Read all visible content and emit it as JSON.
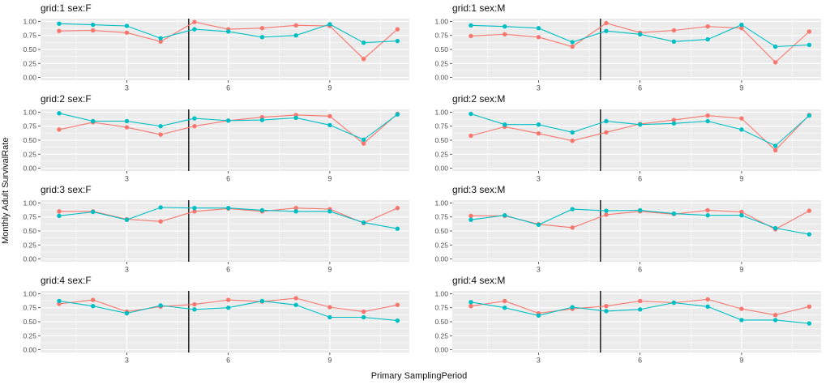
{
  "chart_data": {
    "type": "line",
    "title": "",
    "xlabel": "Primary SamplingPeriod",
    "ylabel": "Monthly Adult SurvivalRate",
    "x": [
      1,
      2,
      3,
      4,
      5,
      6,
      7,
      8,
      9,
      10,
      11
    ],
    "xlim": [
      0.45,
      11.35
    ],
    "ylim": [
      -0.05,
      1.05
    ],
    "xticks": [
      3,
      6,
      9
    ],
    "xticklabels": [
      "3",
      "6",
      "9"
    ],
    "yticks": [
      0,
      0.25,
      0.5,
      0.75,
      1.0
    ],
    "yticklabels": [
      "0.00",
      "0.25",
      "0.50",
      "0.75",
      "1.00"
    ],
    "x_minor_breaks": [
      1.5,
      4.5,
      7.5,
      10.5
    ],
    "y_minor_breaks": [
      0.125,
      0.375,
      0.625,
      0.875
    ],
    "vline_x": 4.83,
    "grid": "major-and-minor",
    "legend_position": "none",
    "panel_bg": "#EBEBEB",
    "grid_color": "#FFFFFF",
    "vline_color": "#000000",
    "tick_mark_color": "#333333",
    "tick_label_color": "#4D4D4D",
    "facet_layout": "4 rows (grid 1-4) x 2 cols (sex F, M)",
    "facets": [
      {
        "label": "grid:1 sex:F",
        "series": [
          {
            "name": "salmon",
            "color": "#F8766D",
            "values": [
              0.83,
              0.84,
              0.8,
              0.64,
              0.99,
              0.86,
              0.88,
              0.93,
              0.92,
              0.33,
              0.86
            ]
          },
          {
            "name": "teal",
            "color": "#00BFC4",
            "values": [
              0.96,
              0.94,
              0.92,
              0.7,
              0.86,
              0.82,
              0.72,
              0.75,
              0.95,
              0.62,
              0.65
            ]
          }
        ]
      },
      {
        "label": "grid:1 sex:M",
        "series": [
          {
            "name": "salmon",
            "color": "#F8766D",
            "values": [
              0.74,
              0.77,
              0.72,
              0.55,
              0.97,
              0.8,
              0.84,
              0.91,
              0.88,
              0.27,
              0.82
            ]
          },
          {
            "name": "teal",
            "color": "#00BFC4",
            "values": [
              0.93,
              0.91,
              0.88,
              0.63,
              0.83,
              0.77,
              0.64,
              0.68,
              0.94,
              0.55,
              0.58
            ]
          }
        ]
      },
      {
        "label": "grid:2 sex:F",
        "series": [
          {
            "name": "salmon",
            "color": "#F8766D",
            "values": [
              0.69,
              0.82,
              0.73,
              0.6,
              0.75,
              0.85,
              0.91,
              0.95,
              0.93,
              0.44,
              0.97
            ]
          },
          {
            "name": "teal",
            "color": "#00BFC4",
            "values": [
              0.98,
              0.84,
              0.84,
              0.75,
              0.89,
              0.85,
              0.86,
              0.9,
              0.77,
              0.51,
              0.96
            ]
          }
        ]
      },
      {
        "label": "grid:2 sex:M",
        "series": [
          {
            "name": "salmon",
            "color": "#F8766D",
            "values": [
              0.58,
              0.74,
              0.62,
              0.49,
              0.64,
              0.79,
              0.86,
              0.94,
              0.89,
              0.32,
              0.95
            ]
          },
          {
            "name": "teal",
            "color": "#00BFC4",
            "values": [
              0.97,
              0.78,
              0.78,
              0.64,
              0.84,
              0.78,
              0.8,
              0.84,
              0.69,
              0.4,
              0.94
            ]
          }
        ]
      },
      {
        "label": "grid:3 sex:F",
        "series": [
          {
            "name": "salmon",
            "color": "#F8766D",
            "values": [
              0.85,
              0.85,
              0.71,
              0.67,
              0.85,
              0.9,
              0.85,
              0.91,
              0.89,
              0.64,
              0.91
            ]
          },
          {
            "name": "teal",
            "color": "#00BFC4",
            "values": [
              0.77,
              0.84,
              0.7,
              0.92,
              0.91,
              0.91,
              0.87,
              0.85,
              0.85,
              0.65,
              0.54
            ]
          }
        ]
      },
      {
        "label": "grid:3 sex:M",
        "series": [
          {
            "name": "salmon",
            "color": "#F8766D",
            "values": [
              0.77,
              0.77,
              0.62,
              0.56,
              0.79,
              0.85,
              0.8,
              0.87,
              0.84,
              0.53,
              0.86
            ]
          },
          {
            "name": "teal",
            "color": "#00BFC4",
            "values": [
              0.7,
              0.78,
              0.61,
              0.89,
              0.86,
              0.87,
              0.81,
              0.78,
              0.78,
              0.55,
              0.44
            ]
          }
        ]
      },
      {
        "label": "grid:4 sex:F",
        "series": [
          {
            "name": "salmon",
            "color": "#F8766D",
            "values": [
              0.82,
              0.89,
              0.68,
              0.77,
              0.81,
              0.89,
              0.86,
              0.92,
              0.76,
              0.68,
              0.8
            ]
          },
          {
            "name": "teal",
            "color": "#00BFC4",
            "values": [
              0.87,
              0.78,
              0.65,
              0.79,
              0.72,
              0.75,
              0.87,
              0.8,
              0.58,
              0.58,
              0.52
            ]
          }
        ]
      },
      {
        "label": "grid:4 sex:M",
        "series": [
          {
            "name": "salmon",
            "color": "#F8766D",
            "values": [
              0.78,
              0.87,
              0.65,
              0.73,
              0.78,
              0.87,
              0.84,
              0.9,
              0.73,
              0.62,
              0.77
            ]
          },
          {
            "name": "teal",
            "color": "#00BFC4",
            "values": [
              0.85,
              0.75,
              0.61,
              0.76,
              0.69,
              0.72,
              0.84,
              0.77,
              0.53,
              0.53,
              0.47
            ]
          }
        ]
      }
    ]
  }
}
